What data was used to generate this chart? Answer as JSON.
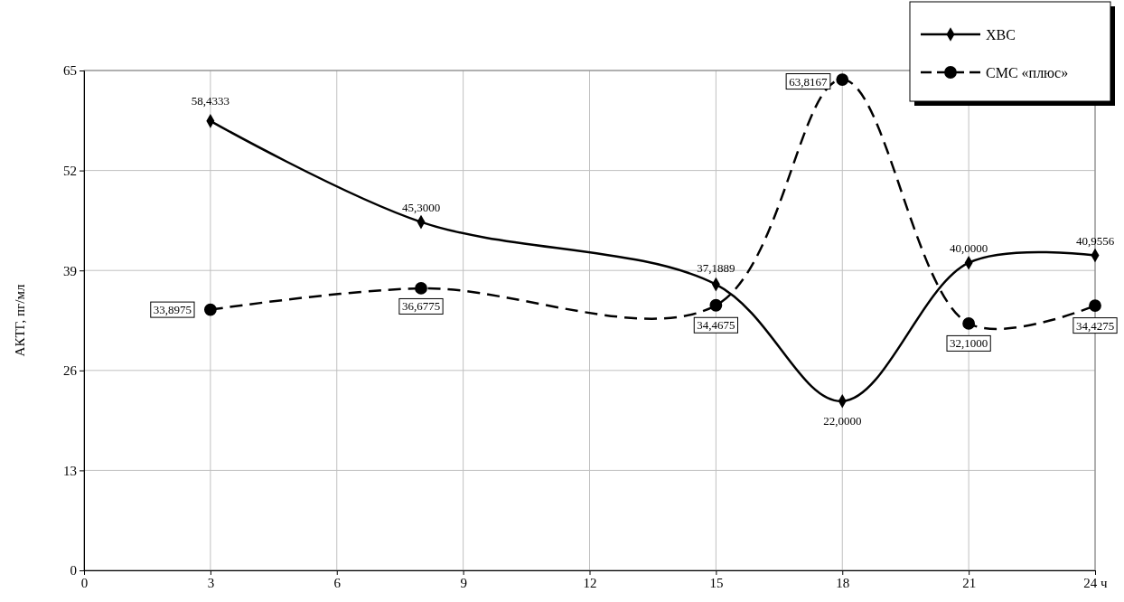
{
  "chart_data": {
    "type": "line",
    "ylabel": "АКТГ, пг/мл",
    "x": [
      3,
      8,
      15,
      18,
      21,
      24
    ],
    "xlim": [
      0,
      24
    ],
    "xticks": [
      0,
      3,
      6,
      9,
      12,
      15,
      18,
      {
        "value": 24,
        "label": "24 ч"
      },
      21
    ],
    "ylim": [
      0,
      65
    ],
    "yticks": [
      0,
      13,
      26,
      39,
      52,
      65
    ],
    "grid": true,
    "legend": "top right",
    "series": [
      {
        "name": "ХВС",
        "color": "#000000",
        "marker": "diamond",
        "line_style": "solid",
        "values": [
          58.4333,
          45.3,
          37.1889,
          22,
          40,
          40.9556
        ],
        "value_labels": [
          "58,4333",
          "45,3000",
          "37,1889",
          "22,0000",
          "40,0000",
          "40,9556"
        ]
      },
      {
        "name": "СМС «плюс»",
        "color": "#000000",
        "marker": "circle",
        "line_style": "dashed",
        "values": [
          33.8975,
          36.6775,
          34.4675,
          63.8167,
          32.1,
          34.4275
        ],
        "value_labels": [
          "33,8975",
          "36,6775",
          "34,4675",
          "63,8167",
          "32,1000",
          "34,4275"
        ]
      }
    ]
  }
}
